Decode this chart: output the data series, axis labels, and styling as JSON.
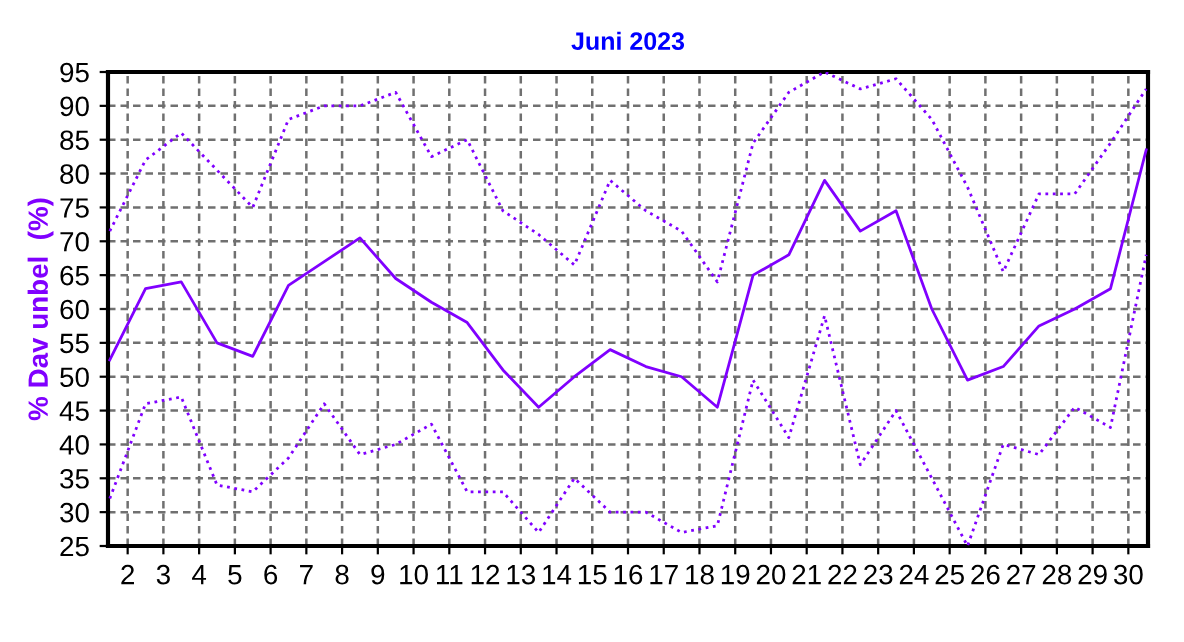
{
  "chart_data": {
    "type": "line",
    "title": "Juni 2023",
    "ylabel": "% Dav unbel  (%)",
    "x": [
      1.5,
      2.5,
      3.5,
      4.5,
      5.5,
      6.5,
      7.5,
      8.5,
      9.5,
      10.5,
      11.5,
      12.5,
      13.5,
      14.5,
      15.5,
      16.5,
      17.5,
      18.5,
      19.5,
      20.5,
      21.5,
      22.5,
      23.5,
      24.5,
      25.5,
      26.5,
      27.5,
      28.5,
      29.5,
      30.5
    ],
    "series": [
      {
        "color": "#8000ff",
        "line_style": "dotted",
        "values": [
          71.5,
          82,
          86,
          80.5,
          75,
          88,
          90,
          90,
          92,
          82.5,
          85,
          74.5,
          71,
          66.5,
          79,
          74.5,
          71.5,
          64,
          84.5,
          92,
          95,
          92.5,
          94,
          88,
          78,
          65.5,
          77,
          77,
          84.5,
          92.5
        ]
      },
      {
        "color": "#8000ff",
        "line_style": "solid",
        "values": [
          52.5,
          63,
          64,
          55,
          53,
          63.5,
          67,
          70.5,
          64.5,
          61,
          58,
          51,
          45.5,
          50,
          54,
          51.5,
          50,
          45.5,
          65,
          68,
          79,
          71.5,
          74.5,
          60,
          49.5,
          51.5,
          57.5,
          60,
          63,
          83.5
        ]
      },
      {
        "color": "#8000ff",
        "line_style": "dotted",
        "values": [
          32,
          46,
          47,
          34,
          33,
          38,
          46,
          38.5,
          40,
          43,
          33,
          33,
          27,
          35,
          30,
          30,
          27,
          28,
          49.5,
          41,
          59,
          37,
          45,
          35,
          25,
          40,
          38.5,
          45.5,
          42.5,
          68
        ]
      }
    ],
    "xlim": [
      1.45,
      30.55
    ],
    "xticks": [
      2,
      3,
      4,
      5,
      6,
      7,
      8,
      9,
      10,
      11,
      12,
      13,
      14,
      15,
      16,
      17,
      18,
      19,
      20,
      21,
      22,
      23,
      24,
      25,
      26,
      27,
      28,
      29,
      30
    ],
    "ylim": [
      25,
      95
    ],
    "yticks": [
      25,
      30,
      35,
      40,
      45,
      50,
      55,
      60,
      65,
      70,
      75,
      80,
      85,
      90,
      95
    ],
    "grid": true,
    "legend": false,
    "marker": "none"
  }
}
